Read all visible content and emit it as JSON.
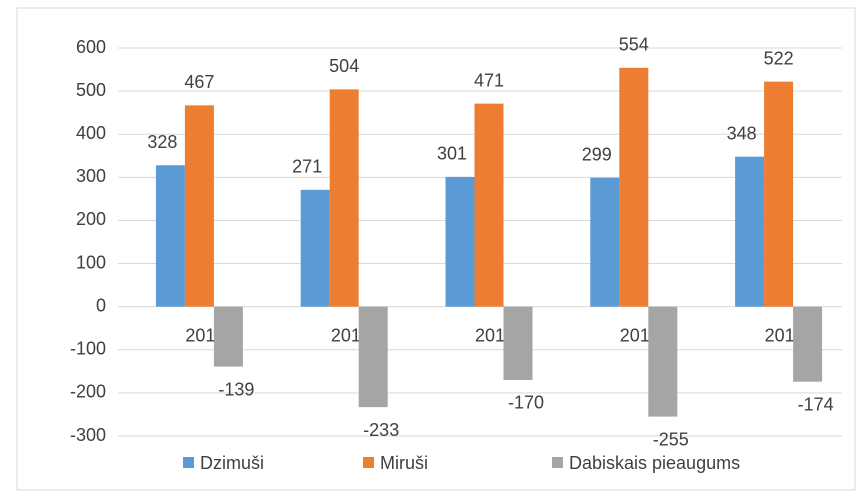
{
  "chart_data": {
    "type": "bar",
    "categories": [
      "2010",
      "2011",
      "2012",
      "2013",
      "2014"
    ],
    "series": [
      {
        "name": "Dzimuši",
        "color": "#5b9bd5",
        "values": [
          328,
          271,
          301,
          299,
          348
        ]
      },
      {
        "name": "Miruši",
        "color": "#ed7d31",
        "values": [
          467,
          504,
          471,
          554,
          522
        ]
      },
      {
        "name": "Dabiskais pieaugums",
        "color": "#a5a5a5",
        "values": [
          -139,
          -233,
          -170,
          -255,
          -174
        ]
      }
    ],
    "ylim": [
      -300,
      600
    ],
    "yticks": [
      -300,
      -200,
      -100,
      0,
      100,
      200,
      300,
      400,
      500,
      600
    ],
    "grid": true,
    "legend": "bottom"
  }
}
